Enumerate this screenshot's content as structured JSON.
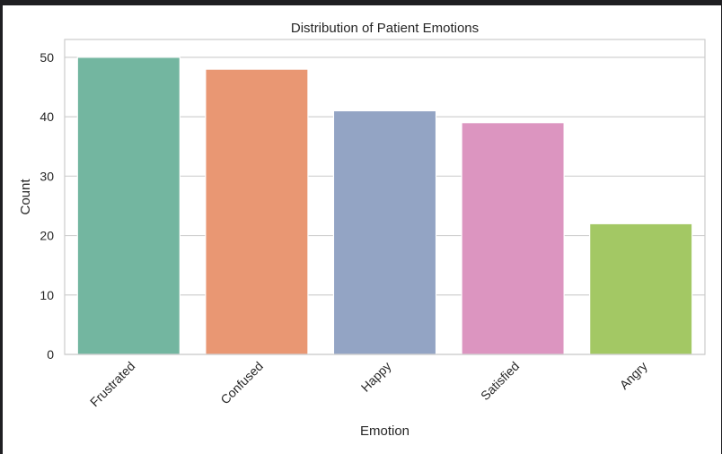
{
  "chart_data": {
    "type": "bar",
    "title": "Distribution of Patient Emotions",
    "xlabel": "Emotion",
    "ylabel": "Count",
    "categories": [
      "Frustrated",
      "Confused",
      "Happy",
      "Satisfied",
      "Angry"
    ],
    "values": [
      50,
      48,
      41,
      39,
      22
    ],
    "colors": [
      "#73b6a0",
      "#e99773",
      "#93a4c4",
      "#dc95c0",
      "#a3c864"
    ],
    "ylim": [
      0,
      53
    ],
    "yticks": [
      0,
      10,
      20,
      30,
      40,
      50
    ],
    "grid": true,
    "tick_rotation": 45
  }
}
